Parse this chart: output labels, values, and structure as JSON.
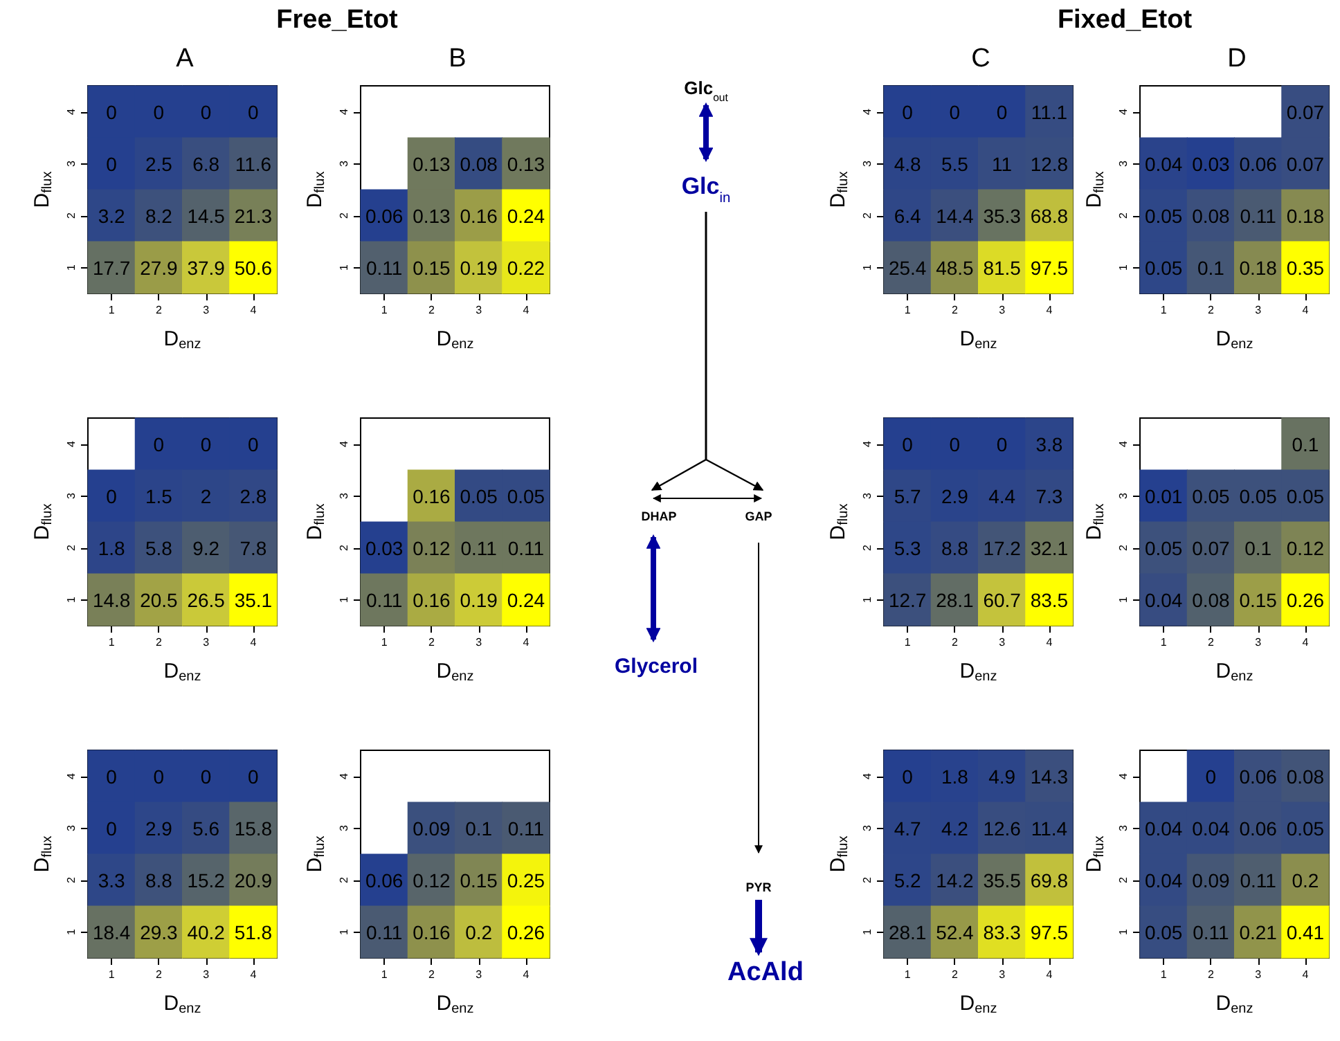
{
  "chart_data": [
    {
      "type": "heatmap",
      "title": "A",
      "annotations": [
        "Free_Etot"
      ],
      "xlabel": "D$_{enz}$",
      "ylabel": "D$_{flux}$",
      "data_labels": true,
      "categories": [
        "1",
        "2",
        "3",
        "4"
      ],
      "y_categories": [
        "4",
        "3",
        "2",
        "1"
      ],
      "cells": [
        [
          0,
          0,
          0,
          0
        ],
        [
          0,
          2.5,
          6.8,
          11.6
        ],
        [
          3.2,
          8.2,
          14.5,
          21.3
        ],
        [
          17.7,
          27.9,
          37.9,
          50.6
        ]
      ]
    },
    {
      "type": "heatmap",
      "title": "B",
      "xlabel": "D$_{enz}$",
      "ylabel": "D$_{flux}$",
      "data_labels": true,
      "categories": [
        "1",
        "2",
        "3",
        "4"
      ],
      "y_categories": [
        "4",
        "3",
        "2",
        "1"
      ],
      "cells": [
        [
          null,
          null,
          null,
          null
        ],
        [
          null,
          0.13,
          0.08,
          0.13
        ],
        [
          0.06,
          0.13,
          0.16,
          0.24
        ],
        [
          0.11,
          0.15,
          0.19,
          0.22
        ]
      ]
    },
    {
      "type": "heatmap",
      "title": "C",
      "annotations": [
        "Fixed_Etot"
      ],
      "xlabel": "D$_{enz}$",
      "ylabel": "D$_{flux}$",
      "data_labels": true,
      "categories": [
        "1",
        "2",
        "3",
        "4"
      ],
      "y_categories": [
        "4",
        "3",
        "2",
        "1"
      ],
      "cells": [
        [
          0,
          0,
          0,
          11.1
        ],
        [
          4.8,
          5.5,
          11,
          12.8
        ],
        [
          6.4,
          14.4,
          35.3,
          68.8
        ],
        [
          25.4,
          48.5,
          81.5,
          97.5
        ]
      ]
    },
    {
      "type": "heatmap",
      "title": "D",
      "xlabel": "D$_{enz}$",
      "ylabel": "D$_{flux}$",
      "data_labels": true,
      "categories": [
        "1",
        "2",
        "3",
        "4"
      ],
      "y_categories": [
        "4",
        "3",
        "2",
        "1"
      ],
      "cells": [
        [
          null,
          null,
          null,
          0.07
        ],
        [
          0.04,
          0.03,
          0.06,
          0.07
        ],
        [
          0.05,
          0.08,
          0.11,
          0.18
        ],
        [
          0.05,
          0.1,
          0.18,
          0.35
        ]
      ]
    },
    {
      "type": "heatmap",
      "xlabel": "D$_{enz}$",
      "ylabel": "D$_{flux}$",
      "data_labels": true,
      "categories": [
        "1",
        "2",
        "3",
        "4"
      ],
      "y_categories": [
        "4",
        "3",
        "2",
        "1"
      ],
      "cells": [
        [
          null,
          0,
          0,
          0
        ],
        [
          0,
          1.5,
          2,
          2.8
        ],
        [
          1.8,
          5.8,
          9.2,
          7.8
        ],
        [
          14.8,
          20.5,
          26.5,
          35.1
        ]
      ]
    },
    {
      "type": "heatmap",
      "xlabel": "D$_{enz}$",
      "ylabel": "D$_{flux}$",
      "data_labels": true,
      "categories": [
        "1",
        "2",
        "3",
        "4"
      ],
      "y_categories": [
        "4",
        "3",
        "2",
        "1"
      ],
      "cells": [
        [
          null,
          null,
          null,
          null
        ],
        [
          null,
          0.16,
          0.05,
          0.05
        ],
        [
          0.03,
          0.12,
          0.11,
          0.11
        ],
        [
          0.11,
          0.16,
          0.19,
          0.24
        ]
      ]
    },
    {
      "type": "heatmap",
      "xlabel": "D$_{enz}$",
      "ylabel": "D$_{flux}$",
      "data_labels": true,
      "categories": [
        "1",
        "2",
        "3",
        "4"
      ],
      "y_categories": [
        "4",
        "3",
        "2",
        "1"
      ],
      "cells": [
        [
          0,
          0,
          0,
          3.8
        ],
        [
          5.7,
          2.9,
          4.4,
          7.3
        ],
        [
          5.3,
          8.8,
          17.2,
          32.1
        ],
        [
          12.7,
          28.1,
          60.7,
          83.5
        ]
      ]
    },
    {
      "type": "heatmap",
      "xlabel": "D$_{enz}$",
      "ylabel": "D$_{flux}$",
      "data_labels": true,
      "categories": [
        "1",
        "2",
        "3",
        "4"
      ],
      "y_categories": [
        "4",
        "3",
        "2",
        "1"
      ],
      "cells": [
        [
          null,
          null,
          null,
          0.1
        ],
        [
          0.01,
          0.05,
          0.05,
          0.05
        ],
        [
          0.05,
          0.07,
          0.1,
          0.12
        ],
        [
          0.04,
          0.08,
          0.15,
          0.26
        ]
      ]
    },
    {
      "type": "heatmap",
      "xlabel": "D$_{enz}$",
      "ylabel": "D$_{flux}$",
      "data_labels": true,
      "categories": [
        "1",
        "2",
        "3",
        "4"
      ],
      "y_categories": [
        "4",
        "3",
        "2",
        "1"
      ],
      "cells": [
        [
          0,
          0,
          0,
          0
        ],
        [
          0,
          2.9,
          5.6,
          15.8
        ],
        [
          3.3,
          8.8,
          15.2,
          20.9
        ],
        [
          18.4,
          29.3,
          40.2,
          51.8
        ]
      ]
    },
    {
      "type": "heatmap",
      "xlabel": "D$_{enz}$",
      "ylabel": "D$_{flux}$",
      "data_labels": true,
      "categories": [
        "1",
        "2",
        "3",
        "4"
      ],
      "y_categories": [
        "4",
        "3",
        "2",
        "1"
      ],
      "cells": [
        [
          null,
          null,
          null,
          null
        ],
        [
          null,
          0.09,
          0.1,
          0.11
        ],
        [
          0.06,
          0.12,
          0.15,
          0.25
        ],
        [
          0.11,
          0.16,
          0.2,
          0.26
        ]
      ]
    },
    {
      "type": "heatmap",
      "xlabel": "D$_{enz}$",
      "ylabel": "D$_{flux}$",
      "data_labels": true,
      "categories": [
        "1",
        "2",
        "3",
        "4"
      ],
      "y_categories": [
        "4",
        "3",
        "2",
        "1"
      ],
      "cells": [
        [
          0,
          1.8,
          4.9,
          14.3
        ],
        [
          4.7,
          4.2,
          12.6,
          11.4
        ],
        [
          5.2,
          14.2,
          35.5,
          69.8
        ],
        [
          28.1,
          52.4,
          83.3,
          97.5
        ]
      ]
    },
    {
      "type": "heatmap",
      "xlabel": "D$_{enz}$",
      "ylabel": "D$_{flux}$",
      "data_labels": true,
      "categories": [
        "1",
        "2",
        "3",
        "4"
      ],
      "y_categories": [
        "4",
        "3",
        "2",
        "1"
      ],
      "cells": [
        [
          null,
          0,
          0.06,
          0.08
        ],
        [
          0.04,
          0.04,
          0.06,
          0.05
        ],
        [
          0.04,
          0.09,
          0.11,
          0.2
        ],
        [
          0.05,
          0.11,
          0.21,
          0.41
        ]
      ]
    },
    {
      "type": "other",
      "annotations": [
        "Glc$_{out}$",
        "Glc$_{in}$",
        "DHAP",
        "GAP",
        "Glycerol",
        "PYR",
        "AcAld"
      ]
    }
  ]
}
